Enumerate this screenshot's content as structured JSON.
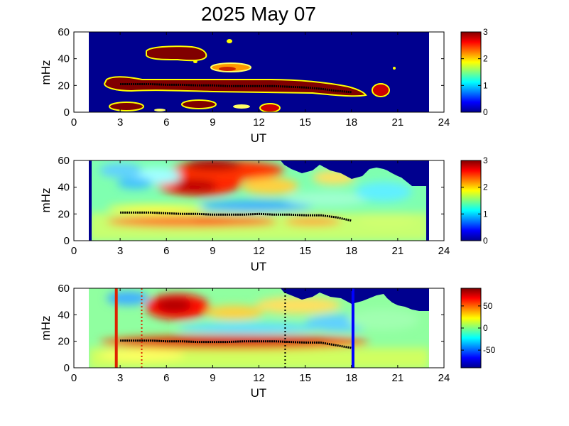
{
  "figure": {
    "title": "2025 May 07"
  },
  "colors": {
    "dark_blue": "#00008f",
    "dark_red": "#800000",
    "red_line": "#dd2200",
    "blue_line": "#0000ff",
    "trace": "#000000"
  },
  "chart_data": [
    {
      "type": "heatmap",
      "xlabel": "UT",
      "ylabel": "mHz",
      "xlim": [
        0,
        24
      ],
      "ylim": [
        0,
        60
      ],
      "x_ticks": [
        0,
        3,
        6,
        9,
        12,
        15,
        18,
        21,
        24
      ],
      "y_ticks": [
        0,
        20,
        40,
        60
      ],
      "data_extent_x": [
        1,
        23
      ],
      "colorbar": {
        "range": [
          0,
          3
        ],
        "ticks": [
          0,
          1,
          2,
          3
        ]
      },
      "trace": {
        "x_start": 3,
        "x_end": 18,
        "values_mHz": [
          21,
          21,
          21,
          20.5,
          20.5,
          20,
          20,
          19.5,
          19.5,
          19.5,
          19.5,
          19,
          18.5,
          17.5,
          16,
          15
        ]
      }
    },
    {
      "type": "heatmap",
      "xlabel": "UT",
      "ylabel": "mHz",
      "xlim": [
        0,
        24
      ],
      "ylim": [
        0,
        60
      ],
      "x_ticks": [
        0,
        3,
        6,
        9,
        12,
        15,
        18,
        21,
        24
      ],
      "y_ticks": [
        0,
        20,
        40,
        60
      ],
      "data_extent_x": [
        1,
        23
      ],
      "colorbar": {
        "range": [
          0,
          3
        ],
        "ticks": [
          0,
          1,
          2,
          3
        ]
      },
      "trace": {
        "x_start": 3,
        "x_end": 18,
        "values_mHz": [
          21,
          21,
          21,
          20.5,
          20,
          20,
          19.5,
          19.5,
          19.5,
          20,
          19.5,
          19.5,
          19,
          19,
          17.5,
          15
        ]
      }
    },
    {
      "type": "heatmap",
      "xlabel": "UT",
      "ylabel": "mHz",
      "xlim": [
        0,
        24
      ],
      "ylim": [
        0,
        60
      ],
      "x_ticks": [
        0,
        3,
        6,
        9,
        12,
        15,
        18,
        21,
        24
      ],
      "y_ticks": [
        0,
        20,
        40,
        60
      ],
      "data_extent_x": [
        1,
        23
      ],
      "colorbar": {
        "range": [
          -90,
          90
        ],
        "ticks": [
          50,
          0,
          -50
        ]
      },
      "trace": {
        "x_start": 3,
        "x_end": 18,
        "values_mHz": [
          20.5,
          20.5,
          20.5,
          20,
          20,
          19.5,
          19.5,
          19.5,
          20,
          20,
          20,
          19.5,
          19,
          19,
          17,
          15
        ]
      },
      "vertical_lines": [
        {
          "x": 2.75,
          "style": "solid",
          "color": "#dd2200"
        },
        {
          "x": 4.4,
          "style": "dotted",
          "color": "#dd2200"
        },
        {
          "x": 13.7,
          "style": "dotted",
          "color": "#000000"
        },
        {
          "x": 18.1,
          "style": "solid",
          "color": "#0000ff"
        }
      ]
    }
  ]
}
